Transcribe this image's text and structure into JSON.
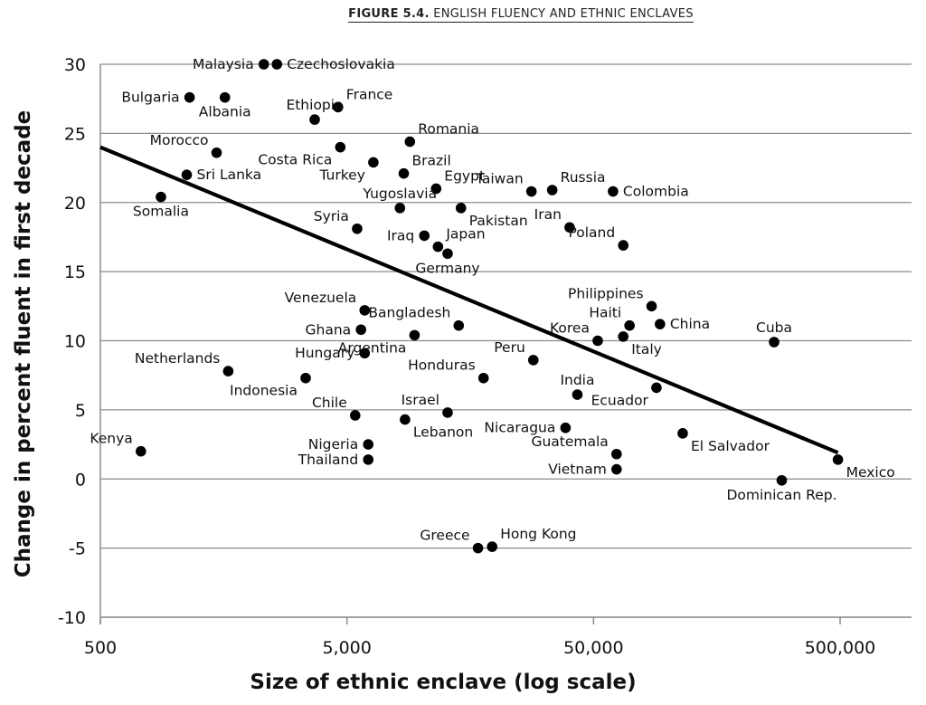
{
  "figure": {
    "number": "FIGURE 5.4.",
    "caption": "ENGLISH FLUENCY AND ETHNIC ENCLAVES"
  },
  "chart_data": {
    "type": "scatter",
    "xlabel": "Size of ethnic enclave (log scale)",
    "ylabel": "Change in percent fluent in first decade",
    "x_scale": "log",
    "xlim": [
      500,
      1300000
    ],
    "ylim": [
      -10,
      30
    ],
    "x_ticks": [
      {
        "value": 500,
        "label": "500"
      },
      {
        "value": 5000,
        "label": "5,000"
      },
      {
        "value": 50000,
        "label": "50,000"
      },
      {
        "value": 500000,
        "label": "500,000"
      }
    ],
    "y_ticks": [
      {
        "value": 30,
        "label": "30"
      },
      {
        "value": 25,
        "label": "25"
      },
      {
        "value": 20,
        "label": "20"
      },
      {
        "value": 15,
        "label": "15"
      },
      {
        "value": 10,
        "label": "10"
      },
      {
        "value": 5,
        "label": "5"
      },
      {
        "value": 0,
        "label": "0"
      },
      {
        "value": -5,
        "label": "-5"
      },
      {
        "value": -10,
        "label": "-10"
      }
    ],
    "grid": "horizontal",
    "points": [
      {
        "name": "Malaysia",
        "x": 2300,
        "y": 30.0,
        "lp": "left"
      },
      {
        "name": "Czechoslovakia",
        "x": 2600,
        "y": 30.0,
        "lp": "right"
      },
      {
        "name": "Bulgaria",
        "x": 1150,
        "y": 27.6,
        "lp": "left"
      },
      {
        "name": "Albania",
        "x": 1600,
        "y": 27.6,
        "lp": "below"
      },
      {
        "name": "France",
        "x": 4600,
        "y": 26.9,
        "lp": "above-right"
      },
      {
        "name": "Ethiopia",
        "x": 3700,
        "y": 26.0,
        "lp": "above"
      },
      {
        "name": "Romania",
        "x": 9000,
        "y": 24.4,
        "lp": "above-right"
      },
      {
        "name": "Morocco",
        "x": 1480,
        "y": 23.6,
        "lp": "above-left"
      },
      {
        "name": "Costa Rica",
        "x": 4700,
        "y": 24.0,
        "lp": "below-left"
      },
      {
        "name": "Turkey",
        "x": 6400,
        "y": 22.9,
        "lp": "below-left"
      },
      {
        "name": "Brazil",
        "x": 8500,
        "y": 22.1,
        "lp": "above-right"
      },
      {
        "name": "Sri Lanka",
        "x": 1120,
        "y": 22.0,
        "lp": "right"
      },
      {
        "name": "Egypt",
        "x": 11500,
        "y": 21.0,
        "lp": "above-right"
      },
      {
        "name": "Yugoslavia",
        "x": 8200,
        "y": 19.6,
        "lp": "above"
      },
      {
        "name": "Taiwan",
        "x": 28000,
        "y": 20.8,
        "lp": "above-left"
      },
      {
        "name": "Russia",
        "x": 34000,
        "y": 20.9,
        "lp": "above-right"
      },
      {
        "name": "Colombia",
        "x": 60000,
        "y": 20.8,
        "lp": "right"
      },
      {
        "name": "Somalia",
        "x": 880,
        "y": 20.4,
        "lp": "below"
      },
      {
        "name": "Pakistan",
        "x": 14500,
        "y": 19.6,
        "lp": "below-right"
      },
      {
        "name": "Iran",
        "x": 40000,
        "y": 18.2,
        "lp": "above-left"
      },
      {
        "name": "Syria",
        "x": 5500,
        "y": 18.1,
        "lp": "above-left"
      },
      {
        "name": "Poland",
        "x": 66000,
        "y": 16.9,
        "lp": "above-left"
      },
      {
        "name": "Iraq",
        "x": 10300,
        "y": 17.6,
        "lp": "left"
      },
      {
        "name": "Japan",
        "x": 11700,
        "y": 16.8,
        "lp": "above-right"
      },
      {
        "name": "Germany",
        "x": 12800,
        "y": 16.3,
        "lp": "below"
      },
      {
        "name": "Venezuela",
        "x": 5900,
        "y": 12.2,
        "lp": "above-left"
      },
      {
        "name": "Philippines",
        "x": 86000,
        "y": 12.5,
        "lp": "above-left"
      },
      {
        "name": "Bangladesh",
        "x": 14200,
        "y": 11.1,
        "lp": "above-left"
      },
      {
        "name": "Haiti",
        "x": 70000,
        "y": 11.1,
        "lp": "above-left"
      },
      {
        "name": "China",
        "x": 93000,
        "y": 11.2,
        "lp": "right"
      },
      {
        "name": "Ghana",
        "x": 5700,
        "y": 10.8,
        "lp": "left"
      },
      {
        "name": "Korea",
        "x": 52000,
        "y": 10.0,
        "lp": "above-left"
      },
      {
        "name": "Cuba",
        "x": 270000,
        "y": 9.9,
        "lp": "above"
      },
      {
        "name": "Argentina",
        "x": 9400,
        "y": 10.4,
        "lp": "below-left"
      },
      {
        "name": "Italy",
        "x": 66000,
        "y": 10.3,
        "lp": "below-right"
      },
      {
        "name": "Hungary",
        "x": 5900,
        "y": 9.1,
        "lp": "left"
      },
      {
        "name": "Peru",
        "x": 28500,
        "y": 8.6,
        "lp": "above-left"
      },
      {
        "name": "Netherlands",
        "x": 1650,
        "y": 7.8,
        "lp": "above-left"
      },
      {
        "name": "Honduras",
        "x": 17900,
        "y": 7.3,
        "lp": "above-left"
      },
      {
        "name": "Indonesia",
        "x": 3400,
        "y": 7.3,
        "lp": "below-left"
      },
      {
        "name": "India",
        "x": 43000,
        "y": 6.1,
        "lp": "above"
      },
      {
        "name": "Ecuador",
        "x": 90000,
        "y": 6.6,
        "lp": "below-left"
      },
      {
        "name": "Chile",
        "x": 5400,
        "y": 4.6,
        "lp": "above-left"
      },
      {
        "name": "Israel",
        "x": 12800,
        "y": 4.8,
        "lp": "above-left"
      },
      {
        "name": "Lebanon",
        "x": 8600,
        "y": 4.3,
        "lp": "below-right"
      },
      {
        "name": "Nicaragua",
        "x": 38500,
        "y": 3.7,
        "lp": "left"
      },
      {
        "name": "Kenya",
        "x": 730,
        "y": 2.0,
        "lp": "above-left"
      },
      {
        "name": "El Salvador",
        "x": 115000,
        "y": 3.3,
        "lp": "below-right"
      },
      {
        "name": "Guatemala",
        "x": 62000,
        "y": 1.8,
        "lp": "above-left"
      },
      {
        "name": "Nigeria",
        "x": 6100,
        "y": 2.5,
        "lp": "left"
      },
      {
        "name": "Mexico",
        "x": 490000,
        "y": 1.4,
        "lp": "below-right"
      },
      {
        "name": "Thailand",
        "x": 6100,
        "y": 1.4,
        "lp": "left"
      },
      {
        "name": "Vietnam",
        "x": 62000,
        "y": 0.7,
        "lp": "left"
      },
      {
        "name": "Dominican Rep.",
        "x": 290000,
        "y": -0.1,
        "lp": "below"
      },
      {
        "name": "Greece",
        "x": 17000,
        "y": -5.0,
        "lp": "above-left"
      },
      {
        "name": "Hong Kong",
        "x": 19400,
        "y": -4.9,
        "lp": "above-right"
      }
    ],
    "trend_line": {
      "x": [
        500,
        490000
      ],
      "y": [
        24.0,
        1.9
      ]
    },
    "legend": "none"
  }
}
